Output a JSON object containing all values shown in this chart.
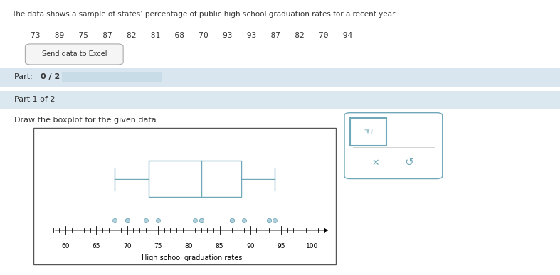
{
  "values": [
    73,
    89,
    75,
    87,
    82,
    81,
    68,
    70,
    93,
    93,
    87,
    82,
    70,
    94
  ],
  "header_text": "The data shows a sample of states’ percentage of public high school graduation rates for a recent year.",
  "data_row": "73   89   75   87   82   81   68   70   93   93   87   82   70   94",
  "button_text": "Send data to Excel",
  "part_label": "Part: ",
  "part_bold": "0 / 2",
  "part1_text": "Part 1 of 2",
  "instruction": "Draw the boxplot for the given data.",
  "xlabel": "High school graduation rates",
  "xlim": [
    58,
    103
  ],
  "xticks": [
    60,
    65,
    70,
    75,
    80,
    85,
    90,
    95,
    100
  ],
  "box_color": "#6fa8b8",
  "dot_color": "#b0d0dc",
  "bg_color": "#ffffff",
  "part_bar_color": "#d9e6f0",
  "part1_bar_color": "#dce8f0",
  "progress_bar_color": "#c8dce8",
  "figsize": [
    7.87,
    3.87
  ],
  "dpi": 100
}
